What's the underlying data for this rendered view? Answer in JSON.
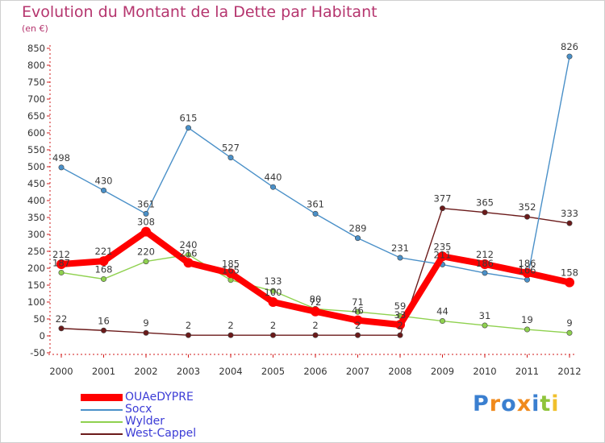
{
  "chart_data": {
    "type": "line",
    "title": "Evolution du Montant de la Dette par Habitant",
    "unit_label": "(en €)",
    "xlabel": "",
    "ylabel": "",
    "ylim": [
      -50,
      850
    ],
    "yticks": [
      -50,
      0,
      50,
      100,
      150,
      200,
      250,
      300,
      350,
      400,
      450,
      500,
      550,
      600,
      650,
      700,
      750,
      800,
      850
    ],
    "categories": [
      "2000",
      "2001",
      "2002",
      "2003",
      "2004",
      "2005",
      "2006",
      "2007",
      "2008",
      "2009",
      "2010",
      "2011",
      "2012"
    ],
    "series": [
      {
        "name": "OUAeDYPRE",
        "color": "#ff0000",
        "values": [
          212,
          221,
          308,
          216,
          185,
          100,
          72,
          46,
          33,
          235,
          212,
          186,
          158
        ]
      },
      {
        "name": "Socx",
        "color": "#4a90c8",
        "values": [
          498,
          430,
          361,
          615,
          527,
          440,
          361,
          289,
          231,
          211,
          186,
          166,
          826
        ]
      },
      {
        "name": "Wylder",
        "color": "#8fd14f",
        "values": [
          187,
          168,
          220,
          240,
          165,
          133,
          80,
          71,
          59,
          44,
          31,
          19,
          9
        ]
      },
      {
        "name": "West-Cappel",
        "color": "#6b1a1a",
        "values": [
          22,
          16,
          9,
          2,
          2,
          2,
          2,
          2,
          2,
          377,
          365,
          352,
          333
        ]
      }
    ],
    "point_labels": [
      {
        "series": "Socx",
        "index": 0,
        "text": "498",
        "pos": "above"
      },
      {
        "series": "Socx",
        "index": 1,
        "text": "430",
        "pos": "above"
      },
      {
        "series": "Socx",
        "index": 2,
        "text": "361",
        "pos": "above"
      },
      {
        "series": "Socx",
        "index": 3,
        "text": "615",
        "pos": "above"
      },
      {
        "series": "Socx",
        "index": 4,
        "text": "527",
        "pos": "above"
      },
      {
        "series": "Socx",
        "index": 5,
        "text": "440",
        "pos": "above"
      },
      {
        "series": "Socx",
        "index": 6,
        "text": "361",
        "pos": "above"
      },
      {
        "series": "Socx",
        "index": 7,
        "text": "289",
        "pos": "above"
      },
      {
        "series": "Socx",
        "index": 8,
        "text": "231",
        "pos": "above"
      },
      {
        "series": "Socx",
        "index": 9,
        "text": "211",
        "pos": "above"
      },
      {
        "series": "Socx",
        "index": 10,
        "text": "186",
        "pos": "above"
      },
      {
        "series": "Socx",
        "index": 11,
        "text": "166",
        "pos": "above"
      },
      {
        "series": "Socx",
        "index": 12,
        "text": "826",
        "pos": "above"
      },
      {
        "series": "OUAeDYPRE",
        "index": 0,
        "text": "212",
        "pos": "above"
      },
      {
        "series": "OUAeDYPRE",
        "index": 1,
        "text": "221",
        "pos": "above"
      },
      {
        "series": "OUAeDYPRE",
        "index": 2,
        "text": "308",
        "pos": "above"
      },
      {
        "series": "OUAeDYPRE",
        "index": 3,
        "text": "216",
        "pos": "above"
      },
      {
        "series": "OUAeDYPRE",
        "index": 4,
        "text": "185",
        "pos": "above"
      },
      {
        "series": "OUAeDYPRE",
        "index": 5,
        "text": "100",
        "pos": "above"
      },
      {
        "series": "OUAeDYPRE",
        "index": 6,
        "text": "72",
        "pos": "above"
      },
      {
        "series": "OUAeDYPRE",
        "index": 7,
        "text": "46",
        "pos": "above"
      },
      {
        "series": "OUAeDYPRE",
        "index": 8,
        "text": "33",
        "pos": "above"
      },
      {
        "series": "OUAeDYPRE",
        "index": 9,
        "text": "235",
        "pos": "above"
      },
      {
        "series": "OUAeDYPRE",
        "index": 10,
        "text": "212",
        "pos": "above"
      },
      {
        "series": "OUAeDYPRE",
        "index": 11,
        "text": "186",
        "pos": "above"
      },
      {
        "series": "OUAeDYPRE",
        "index": 12,
        "text": "158",
        "pos": "above"
      },
      {
        "series": "Wylder",
        "index": 0,
        "text": "187",
        "pos": "above"
      },
      {
        "series": "Wylder",
        "index": 1,
        "text": "168",
        "pos": "above"
      },
      {
        "series": "Wylder",
        "index": 2,
        "text": "220",
        "pos": "above"
      },
      {
        "series": "Wylder",
        "index": 3,
        "text": "240",
        "pos": "above"
      },
      {
        "series": "Wylder",
        "index": 4,
        "text": "165",
        "pos": "above"
      },
      {
        "series": "Wylder",
        "index": 5,
        "text": "133",
        "pos": "above"
      },
      {
        "series": "Wylder",
        "index": 6,
        "text": "80",
        "pos": "above"
      },
      {
        "series": "Wylder",
        "index": 7,
        "text": "71",
        "pos": "above"
      },
      {
        "series": "Wylder",
        "index": 8,
        "text": "59",
        "pos": "above"
      },
      {
        "series": "Wylder",
        "index": 9,
        "text": "44",
        "pos": "above"
      },
      {
        "series": "Wylder",
        "index": 10,
        "text": "31",
        "pos": "above"
      },
      {
        "series": "Wylder",
        "index": 11,
        "text": "19",
        "pos": "above"
      },
      {
        "series": "Wylder",
        "index": 12,
        "text": "9",
        "pos": "above"
      },
      {
        "series": "West-Cappel",
        "index": 0,
        "text": "22",
        "pos": "above"
      },
      {
        "series": "West-Cappel",
        "index": 1,
        "text": "16",
        "pos": "above"
      },
      {
        "series": "West-Cappel",
        "index": 2,
        "text": "9",
        "pos": "above"
      },
      {
        "series": "West-Cappel",
        "index": 3,
        "text": "2",
        "pos": "above"
      },
      {
        "series": "West-Cappel",
        "index": 4,
        "text": "2",
        "pos": "above"
      },
      {
        "series": "West-Cappel",
        "index": 5,
        "text": "2",
        "pos": "above"
      },
      {
        "series": "West-Cappel",
        "index": 6,
        "text": "2",
        "pos": "above"
      },
      {
        "series": "West-Cappel",
        "index": 7,
        "text": "2",
        "pos": "above"
      },
      {
        "series": "West-Cappel",
        "index": 8,
        "text": "2",
        "pos": "above"
      },
      {
        "series": "West-Cappel",
        "index": 9,
        "text": "377",
        "pos": "above"
      },
      {
        "series": "West-Cappel",
        "index": 10,
        "text": "365",
        "pos": "above"
      },
      {
        "series": "West-Cappel",
        "index": 11,
        "text": "352",
        "pos": "above"
      },
      {
        "series": "West-Cappel",
        "index": 12,
        "text": "333",
        "pos": "above"
      }
    ],
    "legend_position": "bottom-left",
    "grid": false
  },
  "legend": {
    "items": [
      {
        "name": "OUAeDYPRE",
        "color": "#ff0000"
      },
      {
        "name": "Socx",
        "color": "#4a90c8"
      },
      {
        "name": "Wylder",
        "color": "#8fd14f"
      },
      {
        "name": "West-Cappel",
        "color": "#6b1a1a"
      }
    ]
  },
  "logo": {
    "letters": [
      "P",
      "r",
      "o",
      "x",
      "i",
      "t",
      "i"
    ],
    "colors": [
      "#3a7fd0",
      "#f08a1c",
      "#3a7fd0",
      "#f08a1c",
      "#3a7fd0",
      "#8fc43a",
      "#f0c02c"
    ]
  }
}
